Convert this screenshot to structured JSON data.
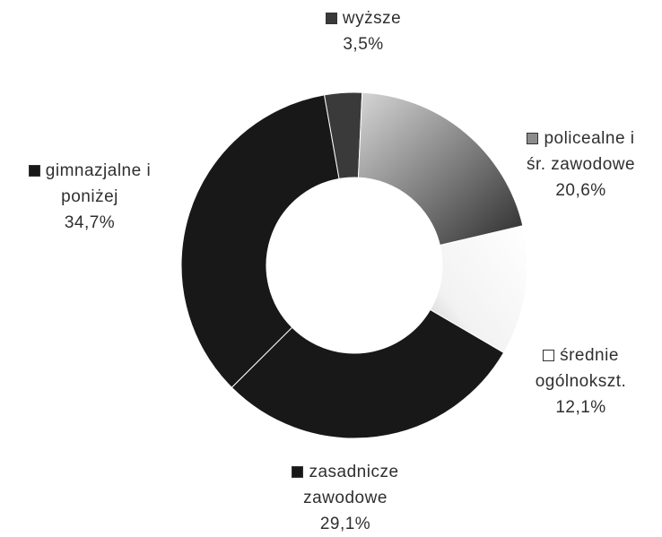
{
  "chart_data": {
    "type": "pie",
    "style": "donut",
    "title": "",
    "slices": [
      {
        "name": "wyższe",
        "label_lines": [
          "wyższe"
        ],
        "value": 3.5,
        "value_label": "3,5%",
        "color": "#3a3a3a"
      },
      {
        "name": "policealne i śr. zawodowe",
        "label_lines": [
          "policealne i",
          "śr. zawodowe"
        ],
        "value": 20.6,
        "value_label": "20,6%",
        "color": "#8c8c8c"
      },
      {
        "name": "średnie ogólnokszt.",
        "label_lines": [
          "średnie",
          "ogólnokszt."
        ],
        "value": 12.1,
        "value_label": "12,1%",
        "color": "#ececec"
      },
      {
        "name": "zasadnicze zawodowe",
        "label_lines": [
          "zasadnicze",
          "zawodowe"
        ],
        "value": 29.1,
        "value_label": "29,1%",
        "color": "#181818"
      },
      {
        "name": "gimnazjalne i poniżej",
        "label_lines": [
          "gimnazjalne i",
          "poniżej"
        ],
        "value": 34.7,
        "value_label": "34,7%",
        "color": "#181818"
      }
    ],
    "legend": "inline-labels"
  }
}
